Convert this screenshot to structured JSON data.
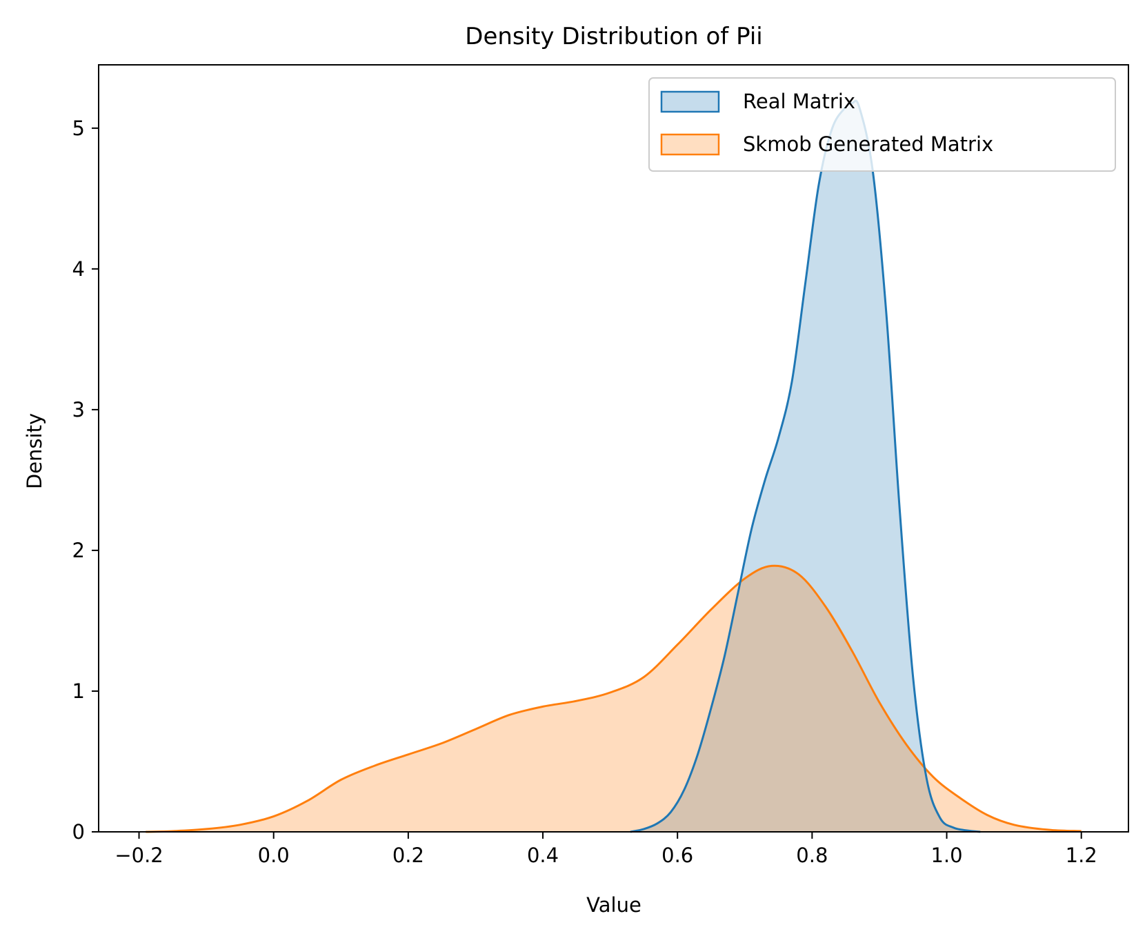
{
  "chart_data": {
    "type": "area",
    "title": "Density Distribution of Pii",
    "xlabel": "Value",
    "ylabel": "Density",
    "xlim": [
      -0.26,
      1.27
    ],
    "ylim": [
      0,
      5.45
    ],
    "xticks": [
      -0.2,
      0.0,
      0.2,
      0.4,
      0.6,
      0.8,
      1.0,
      1.2
    ],
    "xtick_labels": [
      "−0.2",
      "0.0",
      "0.2",
      "0.4",
      "0.6",
      "0.8",
      "1.0",
      "1.2"
    ],
    "yticks": [
      0,
      1,
      2,
      3,
      4,
      5
    ],
    "ytick_labels": [
      "0",
      "1",
      "2",
      "3",
      "4",
      "5"
    ],
    "grid": false,
    "legend_position": "top-right",
    "series": [
      {
        "name": "Real Matrix",
        "color": "#1f77b4",
        "fill_color": "#c5daed",
        "x": [
          0.53,
          0.55,
          0.57,
          0.59,
          0.61,
          0.63,
          0.65,
          0.67,
          0.69,
          0.71,
          0.73,
          0.75,
          0.77,
          0.79,
          0.81,
          0.83,
          0.85,
          0.86,
          0.87,
          0.89,
          0.91,
          0.93,
          0.95,
          0.97,
          0.99,
          1.01,
          1.03,
          1.05
        ],
        "y": [
          0.0,
          0.02,
          0.06,
          0.14,
          0.3,
          0.55,
          0.88,
          1.25,
          1.7,
          2.15,
          2.5,
          2.8,
          3.2,
          3.9,
          4.6,
          5.0,
          5.15,
          5.18,
          5.15,
          4.7,
          3.7,
          2.3,
          1.1,
          0.38,
          0.1,
          0.03,
          0.01,
          0.0
        ]
      },
      {
        "name": "Skmob Generated Matrix",
        "color": "#ff7f0e",
        "fill_color": "#fedcbe",
        "x": [
          -0.19,
          -0.15,
          -0.1,
          -0.05,
          0.0,
          0.05,
          0.1,
          0.15,
          0.2,
          0.25,
          0.3,
          0.35,
          0.4,
          0.45,
          0.5,
          0.55,
          0.6,
          0.65,
          0.7,
          0.74,
          0.78,
          0.82,
          0.86,
          0.9,
          0.94,
          0.98,
          1.02,
          1.06,
          1.1,
          1.15,
          1.2
        ],
        "y": [
          0.0,
          0.005,
          0.02,
          0.05,
          0.11,
          0.22,
          0.37,
          0.47,
          0.55,
          0.63,
          0.73,
          0.83,
          0.89,
          0.93,
          0.99,
          1.1,
          1.33,
          1.58,
          1.8,
          1.89,
          1.83,
          1.6,
          1.28,
          0.92,
          0.62,
          0.39,
          0.24,
          0.12,
          0.05,
          0.015,
          0.005
        ]
      }
    ]
  }
}
